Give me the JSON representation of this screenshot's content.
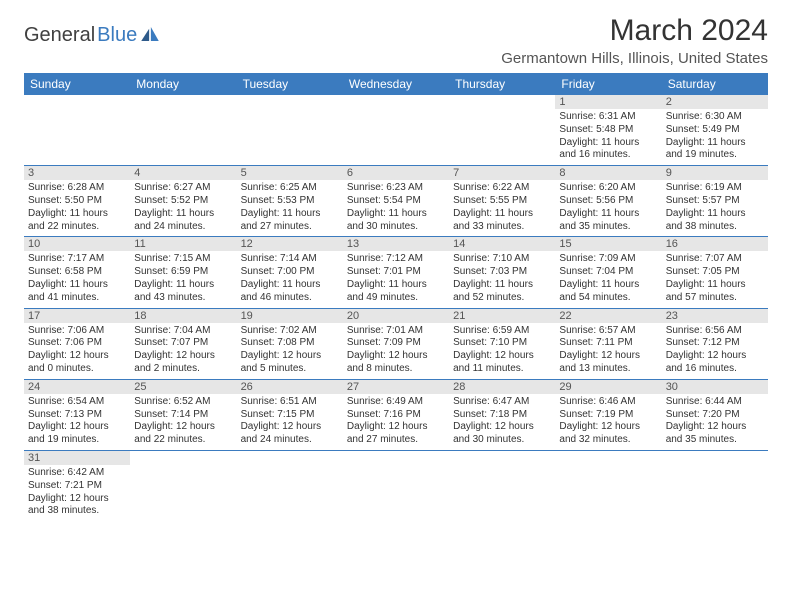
{
  "logo": {
    "part1": "General",
    "part2": "Blue"
  },
  "title": "March 2024",
  "location": "Germantown Hills, Illinois, United States",
  "header_bg": "#3b7bbf",
  "header_fg": "#ffffff",
  "daynum_bg": "#e6e6e6",
  "border_color": "#3b7bbf",
  "days_of_week": [
    "Sunday",
    "Monday",
    "Tuesday",
    "Wednesday",
    "Thursday",
    "Friday",
    "Saturday"
  ],
  "weeks": [
    [
      null,
      null,
      null,
      null,
      null,
      {
        "n": "1",
        "sr": "Sunrise: 6:31 AM",
        "ss": "Sunset: 5:48 PM",
        "d1": "Daylight: 11 hours",
        "d2": "and 16 minutes."
      },
      {
        "n": "2",
        "sr": "Sunrise: 6:30 AM",
        "ss": "Sunset: 5:49 PM",
        "d1": "Daylight: 11 hours",
        "d2": "and 19 minutes."
      }
    ],
    [
      {
        "n": "3",
        "sr": "Sunrise: 6:28 AM",
        "ss": "Sunset: 5:50 PM",
        "d1": "Daylight: 11 hours",
        "d2": "and 22 minutes."
      },
      {
        "n": "4",
        "sr": "Sunrise: 6:27 AM",
        "ss": "Sunset: 5:52 PM",
        "d1": "Daylight: 11 hours",
        "d2": "and 24 minutes."
      },
      {
        "n": "5",
        "sr": "Sunrise: 6:25 AM",
        "ss": "Sunset: 5:53 PM",
        "d1": "Daylight: 11 hours",
        "d2": "and 27 minutes."
      },
      {
        "n": "6",
        "sr": "Sunrise: 6:23 AM",
        "ss": "Sunset: 5:54 PM",
        "d1": "Daylight: 11 hours",
        "d2": "and 30 minutes."
      },
      {
        "n": "7",
        "sr": "Sunrise: 6:22 AM",
        "ss": "Sunset: 5:55 PM",
        "d1": "Daylight: 11 hours",
        "d2": "and 33 minutes."
      },
      {
        "n": "8",
        "sr": "Sunrise: 6:20 AM",
        "ss": "Sunset: 5:56 PM",
        "d1": "Daylight: 11 hours",
        "d2": "and 35 minutes."
      },
      {
        "n": "9",
        "sr": "Sunrise: 6:19 AM",
        "ss": "Sunset: 5:57 PM",
        "d1": "Daylight: 11 hours",
        "d2": "and 38 minutes."
      }
    ],
    [
      {
        "n": "10",
        "sr": "Sunrise: 7:17 AM",
        "ss": "Sunset: 6:58 PM",
        "d1": "Daylight: 11 hours",
        "d2": "and 41 minutes."
      },
      {
        "n": "11",
        "sr": "Sunrise: 7:15 AM",
        "ss": "Sunset: 6:59 PM",
        "d1": "Daylight: 11 hours",
        "d2": "and 43 minutes."
      },
      {
        "n": "12",
        "sr": "Sunrise: 7:14 AM",
        "ss": "Sunset: 7:00 PM",
        "d1": "Daylight: 11 hours",
        "d2": "and 46 minutes."
      },
      {
        "n": "13",
        "sr": "Sunrise: 7:12 AM",
        "ss": "Sunset: 7:01 PM",
        "d1": "Daylight: 11 hours",
        "d2": "and 49 minutes."
      },
      {
        "n": "14",
        "sr": "Sunrise: 7:10 AM",
        "ss": "Sunset: 7:03 PM",
        "d1": "Daylight: 11 hours",
        "d2": "and 52 minutes."
      },
      {
        "n": "15",
        "sr": "Sunrise: 7:09 AM",
        "ss": "Sunset: 7:04 PM",
        "d1": "Daylight: 11 hours",
        "d2": "and 54 minutes."
      },
      {
        "n": "16",
        "sr": "Sunrise: 7:07 AM",
        "ss": "Sunset: 7:05 PM",
        "d1": "Daylight: 11 hours",
        "d2": "and 57 minutes."
      }
    ],
    [
      {
        "n": "17",
        "sr": "Sunrise: 7:06 AM",
        "ss": "Sunset: 7:06 PM",
        "d1": "Daylight: 12 hours",
        "d2": "and 0 minutes."
      },
      {
        "n": "18",
        "sr": "Sunrise: 7:04 AM",
        "ss": "Sunset: 7:07 PM",
        "d1": "Daylight: 12 hours",
        "d2": "and 2 minutes."
      },
      {
        "n": "19",
        "sr": "Sunrise: 7:02 AM",
        "ss": "Sunset: 7:08 PM",
        "d1": "Daylight: 12 hours",
        "d2": "and 5 minutes."
      },
      {
        "n": "20",
        "sr": "Sunrise: 7:01 AM",
        "ss": "Sunset: 7:09 PM",
        "d1": "Daylight: 12 hours",
        "d2": "and 8 minutes."
      },
      {
        "n": "21",
        "sr": "Sunrise: 6:59 AM",
        "ss": "Sunset: 7:10 PM",
        "d1": "Daylight: 12 hours",
        "d2": "and 11 minutes."
      },
      {
        "n": "22",
        "sr": "Sunrise: 6:57 AM",
        "ss": "Sunset: 7:11 PM",
        "d1": "Daylight: 12 hours",
        "d2": "and 13 minutes."
      },
      {
        "n": "23",
        "sr": "Sunrise: 6:56 AM",
        "ss": "Sunset: 7:12 PM",
        "d1": "Daylight: 12 hours",
        "d2": "and 16 minutes."
      }
    ],
    [
      {
        "n": "24",
        "sr": "Sunrise: 6:54 AM",
        "ss": "Sunset: 7:13 PM",
        "d1": "Daylight: 12 hours",
        "d2": "and 19 minutes."
      },
      {
        "n": "25",
        "sr": "Sunrise: 6:52 AM",
        "ss": "Sunset: 7:14 PM",
        "d1": "Daylight: 12 hours",
        "d2": "and 22 minutes."
      },
      {
        "n": "26",
        "sr": "Sunrise: 6:51 AM",
        "ss": "Sunset: 7:15 PM",
        "d1": "Daylight: 12 hours",
        "d2": "and 24 minutes."
      },
      {
        "n": "27",
        "sr": "Sunrise: 6:49 AM",
        "ss": "Sunset: 7:16 PM",
        "d1": "Daylight: 12 hours",
        "d2": "and 27 minutes."
      },
      {
        "n": "28",
        "sr": "Sunrise: 6:47 AM",
        "ss": "Sunset: 7:18 PM",
        "d1": "Daylight: 12 hours",
        "d2": "and 30 minutes."
      },
      {
        "n": "29",
        "sr": "Sunrise: 6:46 AM",
        "ss": "Sunset: 7:19 PM",
        "d1": "Daylight: 12 hours",
        "d2": "and 32 minutes."
      },
      {
        "n": "30",
        "sr": "Sunrise: 6:44 AM",
        "ss": "Sunset: 7:20 PM",
        "d1": "Daylight: 12 hours",
        "d2": "and 35 minutes."
      }
    ],
    [
      {
        "n": "31",
        "sr": "Sunrise: 6:42 AM",
        "ss": "Sunset: 7:21 PM",
        "d1": "Daylight: 12 hours",
        "d2": "and 38 minutes."
      },
      null,
      null,
      null,
      null,
      null,
      null
    ]
  ]
}
